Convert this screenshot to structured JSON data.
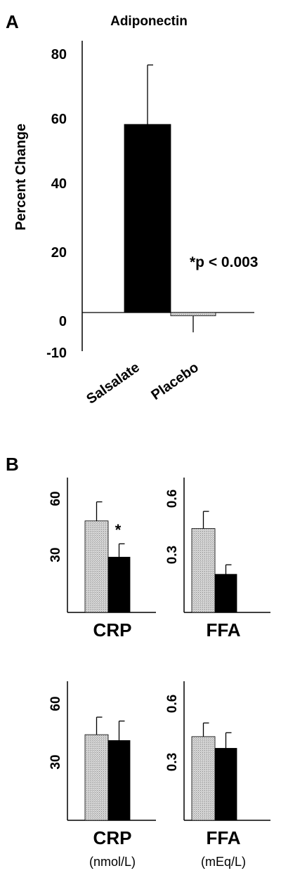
{
  "panel_a": {
    "label": "A",
    "title": "Adiponectin",
    "ylabel": "Percent Change",
    "annotation": "*p < 0.003",
    "colors": {
      "salsalate": "#000000",
      "placebo": "#c8c8c8"
    }
  },
  "panel_b": {
    "label": "B",
    "units": {
      "crp": "(nmol/L)",
      "ffa": "(mEq/L)"
    }
  },
  "chart_data": [
    {
      "type": "bar",
      "panel": "A",
      "title": "Adiponectin",
      "ylabel": "Percent Change",
      "categories": [
        "Salsalate",
        "Placebo"
      ],
      "values": [
        57,
        -1
      ],
      "error": [
        18,
        5
      ],
      "yticks": [
        "80",
        "60",
        "40",
        "20",
        "0",
        "-10"
      ],
      "ylim": [
        -10,
        85
      ],
      "annotation": "*p < 0.003"
    },
    {
      "type": "bar",
      "panel": "B-top-left",
      "xlabel": "CRP",
      "yticks": [
        "60",
        "30"
      ],
      "ylim": [
        0,
        70
      ],
      "values": [
        48,
        29
      ],
      "error": [
        10,
        7
      ],
      "marker": "*"
    },
    {
      "type": "bar",
      "panel": "B-top-right",
      "xlabel": "FFA",
      "yticks": [
        "0.6",
        "0.3"
      ],
      "ylim": [
        0,
        0.7
      ],
      "values": [
        0.44,
        0.2
      ],
      "error": [
        0.09,
        0.05
      ]
    },
    {
      "type": "bar",
      "panel": "B-bottom-left",
      "xlabel": "CRP",
      "unit": "(nmol/L)",
      "yticks": [
        "60",
        "30"
      ],
      "ylim": [
        0,
        70
      ],
      "values": [
        44,
        41
      ],
      "error": [
        9,
        10
      ]
    },
    {
      "type": "bar",
      "panel": "B-bottom-right",
      "xlabel": "FFA",
      "unit": "(mEq/L)",
      "yticks": [
        "0.6",
        "0.3"
      ],
      "ylim": [
        0,
        0.7
      ],
      "values": [
        0.43,
        0.37
      ],
      "error": [
        0.07,
        0.08
      ]
    }
  ]
}
